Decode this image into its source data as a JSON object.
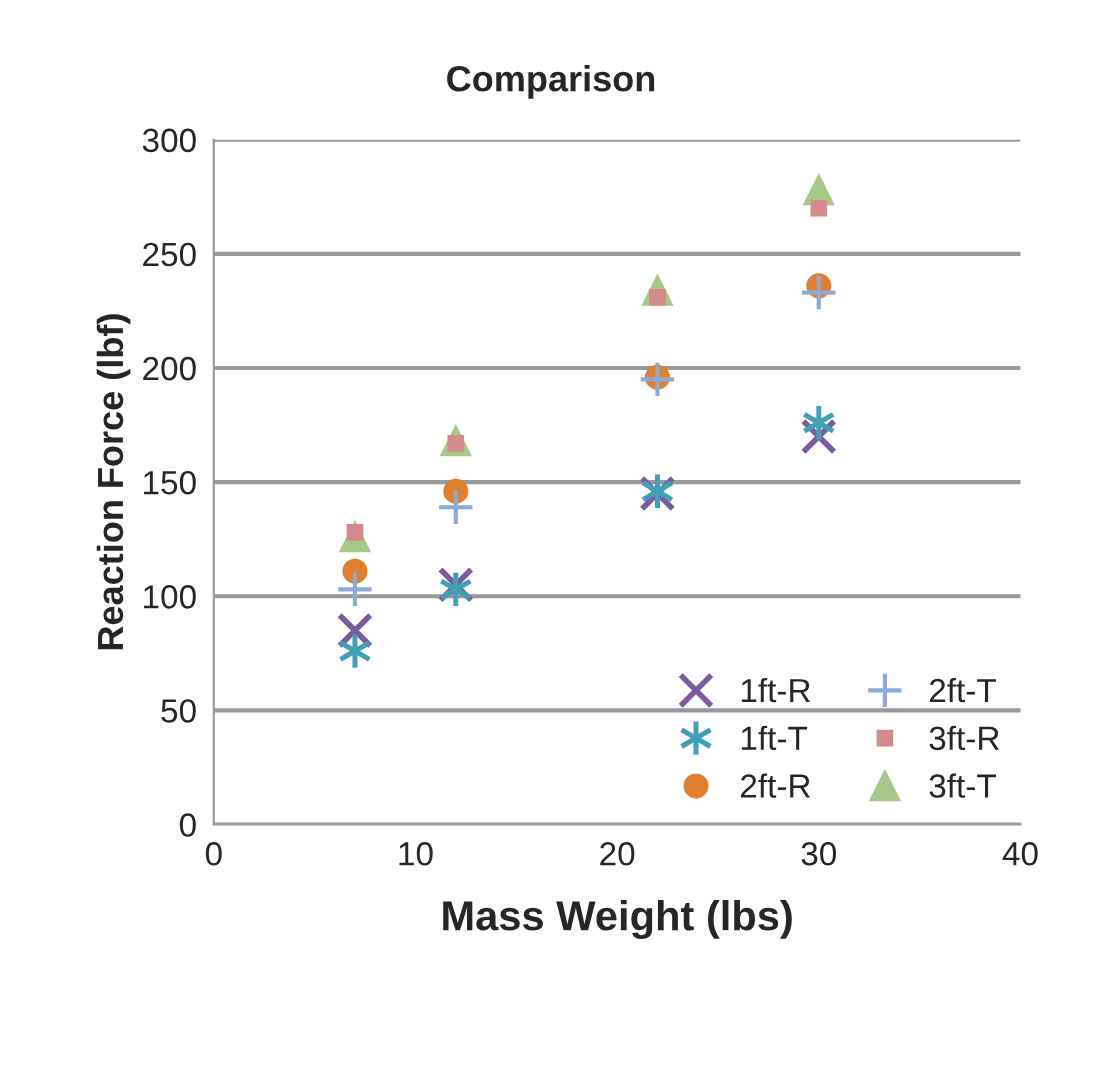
{
  "chart_data": {
    "type": "scatter",
    "title": "Comparison",
    "xlabel": "Mass Weight (lbs)",
    "ylabel": "Reaction Force (lbf)",
    "x": [
      7,
      12,
      22,
      30
    ],
    "series": [
      {
        "name": "1ft-R",
        "color": "#7a5c9e",
        "marker": "cross",
        "values": [
          85,
          105,
          145,
          170
        ]
      },
      {
        "name": "1ft-T",
        "color": "#3fa0b8",
        "marker": "cross",
        "values": [
          76,
          103,
          146,
          176
        ]
      },
      {
        "name": "2ft-R",
        "color": "#e07f2e",
        "marker": "circle",
        "values": [
          111,
          146,
          196,
          236
        ]
      },
      {
        "name": "2ft-T",
        "color": "#8ea9d4",
        "marker": "plus",
        "values": [
          103,
          139,
          195,
          233
        ]
      },
      {
        "name": "3ft-R",
        "color": "#d48a8a",
        "marker": "square",
        "values": [
          128,
          167,
          231,
          270
        ]
      },
      {
        "name": "3ft-T",
        "color": "#a8c88a",
        "marker": "triangle",
        "values": [
          126,
          168,
          234,
          278
        ]
      }
    ],
    "xlim": [
      0,
      40
    ],
    "xticks": [
      0,
      10,
      20,
      30,
      40
    ],
    "ylim": [
      0,
      300
    ],
    "yticks": [
      0,
      50,
      100,
      150,
      200,
      250,
      300
    ],
    "grid": "y",
    "legend": "bottom right"
  }
}
